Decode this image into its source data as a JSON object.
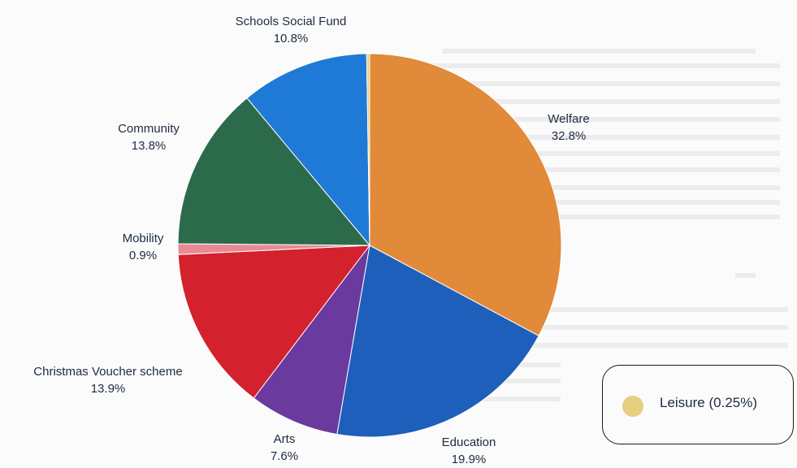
{
  "chart_data": {
    "type": "pie",
    "slices": [
      {
        "label": "Welfare",
        "value": 32.8,
        "display": "32.8%",
        "color": "#e08a3a"
      },
      {
        "label": "Education",
        "value": 19.9,
        "display": "19.9%",
        "color": "#1d5fbb"
      },
      {
        "label": "Arts",
        "value": 7.6,
        "display": "7.6%",
        "color": "#6a3a9e"
      },
      {
        "label": "Christmas Voucher scheme",
        "value": 13.9,
        "display": "13.9%",
        "color": "#d3212d"
      },
      {
        "label": "Mobility",
        "value": 0.9,
        "display": "0.9%",
        "color": "#e88a93"
      },
      {
        "label": "Community",
        "value": 13.8,
        "display": "13.8%",
        "color": "#2b6b4b"
      },
      {
        "label": "Schools Social Fund",
        "value": 10.8,
        "display": "10.8%",
        "color": "#1e7ad6"
      },
      {
        "label": "Leisure",
        "value": 0.25,
        "display": "0.25%",
        "color": "#e7cf7f"
      }
    ],
    "legend": {
      "position": "bottom-right",
      "text": "Leisure (0.25%)"
    }
  }
}
